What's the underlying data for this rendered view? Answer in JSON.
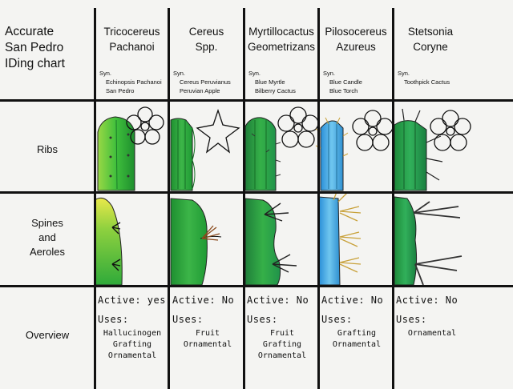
{
  "title_lines": [
    "Accurate",
    "San Pedro",
    "IDing chart"
  ],
  "columns": [
    {
      "name_lines": [
        "Tricocereus",
        "Pachanoi"
      ],
      "syn_label": "Syn.",
      "syn": [
        "Echinopsis Pachanoi",
        "San Pedro"
      ],
      "active": "Active: yes",
      "uses_label": "Uses:",
      "uses": [
        "Hallucinogen",
        "Grafting",
        "Ornamental"
      ]
    },
    {
      "name_lines": [
        "Cereus",
        "Spp."
      ],
      "syn_label": "Syn.",
      "syn": [
        "Cereus Peruvianus",
        "Peruvian Apple"
      ],
      "active": "Active: No",
      "uses_label": "Uses:",
      "uses": [
        "Fruit",
        "Ornamental"
      ]
    },
    {
      "name_lines": [
        "Myrtillocactus",
        "Geometrizans"
      ],
      "syn_label": "Syn.",
      "syn": [
        "Blue Myrtle",
        "Bilberry Cactus"
      ],
      "active": "Active: No",
      "uses_label": "Uses:",
      "uses": [
        "Fruit",
        "Grafting",
        "Ornamental"
      ]
    },
    {
      "name_lines": [
        "Pilosocereus",
        "Azureus"
      ],
      "syn_label": "Syn.",
      "syn": [
        "Blue Candle",
        "Blue Torch"
      ],
      "active": "Active: No",
      "uses_label": "Uses:",
      "uses": [
        "Grafting",
        "Ornamental"
      ]
    },
    {
      "name_lines": [
        "Stetsonia",
        "Coryne"
      ],
      "syn_label": "Syn.",
      "syn": [
        "Toothpick Cactus"
      ],
      "active": "Active: No",
      "uses_label": "Uses:",
      "uses": [
        "Ornamental"
      ]
    }
  ],
  "rows": [
    {
      "label_lines": [
        "Ribs"
      ]
    },
    {
      "label_lines": [
        "Spines",
        "and",
        "Aeroles"
      ]
    },
    {
      "label_lines": [
        "Overview"
      ]
    }
  ],
  "colors": {
    "cactus_green": "#2fae3c",
    "cactus_light": "#9ad845",
    "cactus_yellow": "#e9e84a",
    "blue": "#3a9ee0",
    "spine_gold": "#c8a13a",
    "ink": "#111111"
  }
}
